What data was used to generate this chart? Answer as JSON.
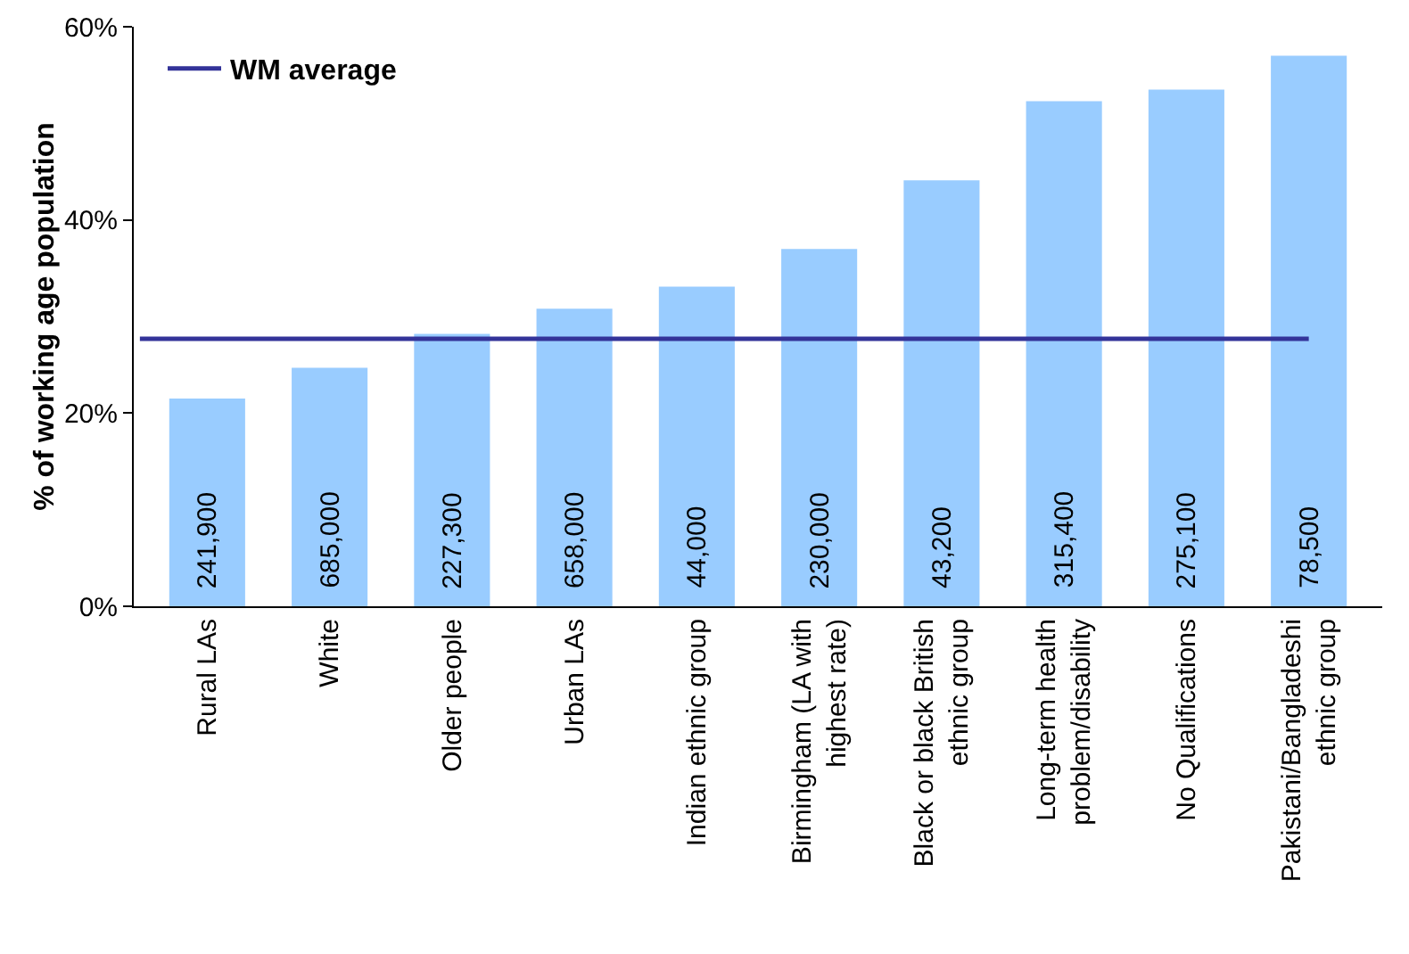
{
  "chart_data": {
    "type": "bar",
    "ylabel": "% of working age population",
    "categories": [
      "Rural LAs",
      "White",
      "Older people",
      "Urban LAs",
      "Indian ethnic group",
      "Birmingham (LA with highest rate)",
      "Black or black British ethnic group",
      "Long-term health problem/disability",
      "No Qualifications",
      "Pakistani/Bangladeshi ethnic group"
    ],
    "values": [
      21.5,
      24.7,
      28.2,
      30.8,
      33.1,
      37.0,
      44.1,
      52.3,
      53.5,
      57.0
    ],
    "annotations": [
      {
        "text": "241,900",
        "x": "Rural LAs",
        "y": 0
      },
      {
        "text": "685,000",
        "x": "White",
        "y": 0
      },
      {
        "text": "227,300",
        "x": "Older people",
        "y": 0
      },
      {
        "text": "658,000",
        "x": "Urban LAs",
        "y": 0
      },
      {
        "text": "44,000",
        "x": "Indian ethnic group",
        "y": 0
      },
      {
        "text": "230,000",
        "x": "Birmingham (LA with highest rate)",
        "y": 0
      },
      {
        "text": "43,200",
        "x": "Black or black British ethnic group",
        "y": 0
      },
      {
        "text": "315,400",
        "x": "Long-term health problem/disability",
        "y": 0
      },
      {
        "text": "275,100",
        "x": "No Qualifications",
        "y": 0
      },
      {
        "text": "78,500",
        "x": "Pakistani/Bangladeshi ethnic group",
        "y": 0
      }
    ],
    "color": "#99ccff",
    "ylim": [
      0,
      60
    ],
    "yticks": [
      {
        "value": 0,
        "label": "0%"
      },
      {
        "value": 20,
        "label": "20%"
      },
      {
        "value": 40,
        "label": "40%"
      },
      {
        "value": 60,
        "label": "60%"
      }
    ],
    "ref_lines": [
      {
        "axis": "y",
        "value": 27.7,
        "label": "WM average",
        "color": "#333399"
      }
    ],
    "grid": false,
    "legend": "top left"
  }
}
